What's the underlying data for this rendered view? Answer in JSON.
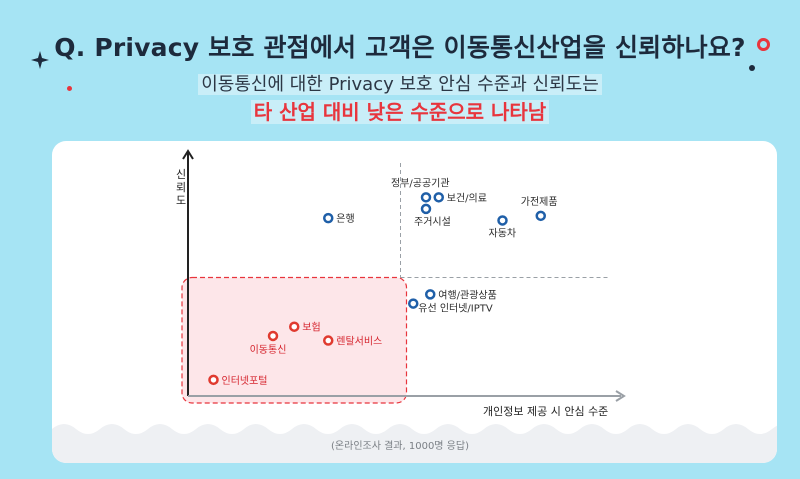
{
  "header": {
    "question": "Q. Privacy 보호 관점에서 고객은 이동통신산업을 신뢰하나요?",
    "subtitle_line1": "이동통신에 대한 Privacy 보호 안심 수준과 신뢰도는",
    "subtitle_line2": "타 산업 대비 낮은 수준으로 나타남"
  },
  "colors": {
    "background": "#a6e4f4",
    "highlight_red": "#e8353d",
    "point_blue": "#1f5fa8",
    "point_red": "#e03a2f",
    "region_fill": "#fde6e9"
  },
  "decorations": {
    "sparkle": "sparkle-icon",
    "ring": "ring-icon"
  },
  "chart_data": {
    "type": "scatter",
    "xlabel": "개인정보 제공 시 안심 수준",
    "ylabel": "신뢰도",
    "xlim": [
      0,
      100
    ],
    "ylim": [
      0,
      100
    ],
    "x_divider": 50,
    "y_divider": 50,
    "highlight_region": {
      "x": [
        0,
        50
      ],
      "y": [
        0,
        50
      ]
    },
    "note": "(온라인조사 결과, 1000명 응답)",
    "points": [
      {
        "label": "정부/공공기관",
        "x": 56,
        "y": 86,
        "group": "blue"
      },
      {
        "label": "보건/의료",
        "x": 59,
        "y": 86,
        "group": "blue"
      },
      {
        "label": "주거시설",
        "x": 56,
        "y": 81,
        "group": "blue"
      },
      {
        "label": "가전제품",
        "x": 83,
        "y": 78,
        "group": "blue"
      },
      {
        "label": "자동차",
        "x": 74,
        "y": 76,
        "group": "blue"
      },
      {
        "label": "은행",
        "x": 33,
        "y": 77,
        "group": "blue"
      },
      {
        "label": "여행/관광상품",
        "x": 57,
        "y": 44,
        "group": "blue"
      },
      {
        "label": "유선 인터넷/IPTV",
        "x": 53,
        "y": 40,
        "group": "blue"
      },
      {
        "label": "보험",
        "x": 25,
        "y": 30,
        "group": "red"
      },
      {
        "label": "이동통신",
        "x": 20,
        "y": 26,
        "group": "red"
      },
      {
        "label": "렌탈서비스",
        "x": 33,
        "y": 24,
        "group": "red"
      },
      {
        "label": "인터넷포털",
        "x": 6,
        "y": 7,
        "group": "red"
      }
    ]
  }
}
